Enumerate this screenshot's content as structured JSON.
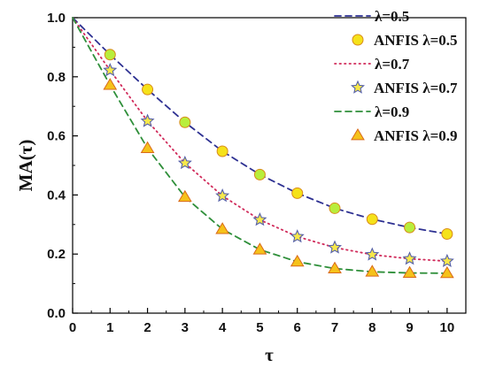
{
  "chart_data": {
    "type": "line",
    "xlabel": "τ",
    "ylabel": "MA(τ)",
    "xlim": [
      0,
      10.5
    ],
    "ylim": [
      0,
      1.0
    ],
    "x_ticks": [
      "0",
      "1",
      "2",
      "3",
      "4",
      "5",
      "6",
      "7",
      "8",
      "9",
      "10"
    ],
    "y_ticks": [
      "0.0",
      "0.2",
      "0.4",
      "0.6",
      "0.8",
      "1.0"
    ],
    "grid": false,
    "legend_position": "top-right",
    "x": [
      0,
      1,
      2,
      3,
      4,
      5,
      6,
      7,
      8,
      9,
      10
    ],
    "series": [
      {
        "name": "λ=0.5",
        "kind": "line",
        "style": "dashed",
        "color": "#2e3192",
        "values": [
          1.0,
          0.875,
          0.757,
          0.646,
          0.548,
          0.469,
          0.406,
          0.355,
          0.318,
          0.29,
          0.268
        ]
      },
      {
        "name": "ANFIS λ=0.5",
        "kind": "marker",
        "marker": "circle",
        "fill": "#f5e21a",
        "fill_alt": "#b8ee3c",
        "stroke": "#d98c1a",
        "values": [
          0.99,
          0.875,
          0.757,
          0.646,
          0.548,
          0.469,
          0.406,
          0.355,
          0.318,
          0.29,
          0.268
        ]
      },
      {
        "name": "λ=0.7",
        "kind": "line",
        "style": "dotted",
        "color": "#d02a5a",
        "values": [
          1.0,
          0.822,
          0.65,
          0.508,
          0.397,
          0.316,
          0.259,
          0.222,
          0.198,
          0.184,
          0.176
        ]
      },
      {
        "name": "ANFIS λ=0.7",
        "kind": "marker",
        "marker": "star",
        "fill": "#f7e84a",
        "stroke": "#5560a8",
        "values": [
          0.99,
          0.822,
          0.65,
          0.508,
          0.397,
          0.316,
          0.259,
          0.222,
          0.198,
          0.184,
          0.176
        ]
      },
      {
        "name": "λ=0.9",
        "kind": "line",
        "style": "dashed",
        "color": "#2f8f3a",
        "values": [
          1.0,
          0.772,
          0.558,
          0.393,
          0.284,
          0.215,
          0.174,
          0.151,
          0.14,
          0.136,
          0.135
        ]
      },
      {
        "name": "ANFIS λ=0.9",
        "kind": "marker",
        "marker": "triangle",
        "fill": "#f5c21a",
        "stroke": "#d96a1a",
        "values": [
          0.99,
          0.772,
          0.558,
          0.393,
          0.284,
          0.215,
          0.174,
          0.151,
          0.14,
          0.136,
          0.135
        ]
      }
    ]
  }
}
